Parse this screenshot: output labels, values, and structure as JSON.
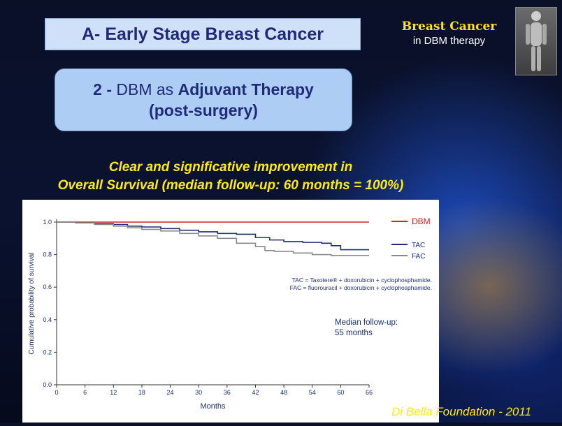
{
  "header": {
    "title": "A- Early Stage Breast Cancer",
    "brand_title": "Breast Cancer",
    "brand_sub": "in DBM therapy",
    "brand_figure": "human-figure-icon"
  },
  "subtitle": {
    "prefix": "2 - ",
    "mid": "DBM as ",
    "bold": "Adjuvant Therapy",
    "line2": "(post-surgery)"
  },
  "claim": {
    "line1": "Clear and significative improvement in",
    "line2": "Overall Survival (median follow-up: 60 months = 100%)"
  },
  "footer": "Di Bella Foundation - 2011",
  "colors": {
    "dbm": "#d42020",
    "tac": "#1c2f6e",
    "fac": "#8a8a8a"
  },
  "chart_data": {
    "type": "line",
    "xlabel": "Months",
    "ylabel": "Cumulative probability of survival",
    "xlim": [
      0,
      66
    ],
    "ylim": [
      0,
      1.0
    ],
    "xticks": [
      0,
      6,
      12,
      18,
      24,
      30,
      36,
      42,
      48,
      54,
      60,
      66
    ],
    "yticks": [
      "0.0",
      "0.2",
      "0.4",
      "0.6",
      "0.8",
      "1.0"
    ],
    "grid": false,
    "legend_position": "right",
    "series": [
      {
        "name": "DBM",
        "x": [
          0,
          66
        ],
        "y": [
          1.0,
          1.0
        ]
      },
      {
        "name": "TAC",
        "x": [
          0,
          4,
          8,
          12,
          15,
          18,
          22,
          26,
          30,
          34,
          38,
          42,
          45,
          48,
          52,
          56,
          58,
          60,
          62,
          66
        ],
        "y": [
          1.0,
          0.995,
          0.99,
          0.985,
          0.975,
          0.97,
          0.96,
          0.95,
          0.94,
          0.93,
          0.925,
          0.905,
          0.89,
          0.88,
          0.875,
          0.87,
          0.855,
          0.83,
          0.83,
          0.83
        ]
      },
      {
        "name": "FAC",
        "x": [
          0,
          4,
          8,
          12,
          15,
          18,
          22,
          26,
          30,
          34,
          38,
          42,
          44,
          46,
          50,
          54,
          58,
          62,
          66
        ],
        "y": [
          1.0,
          0.995,
          0.985,
          0.975,
          0.965,
          0.955,
          0.945,
          0.93,
          0.915,
          0.9,
          0.87,
          0.85,
          0.825,
          0.82,
          0.81,
          0.8,
          0.795,
          0.795,
          0.795
        ]
      }
    ],
    "annotations": {
      "tac_def": "TAC = Taxotere® + doxorubicin + cyclophosphamide.",
      "fac_def": "FAC = fluorouracil + doxorubicin + cyclophosphamide.",
      "median_line1": "Median follow-up:",
      "median_line2": "55 months"
    }
  }
}
